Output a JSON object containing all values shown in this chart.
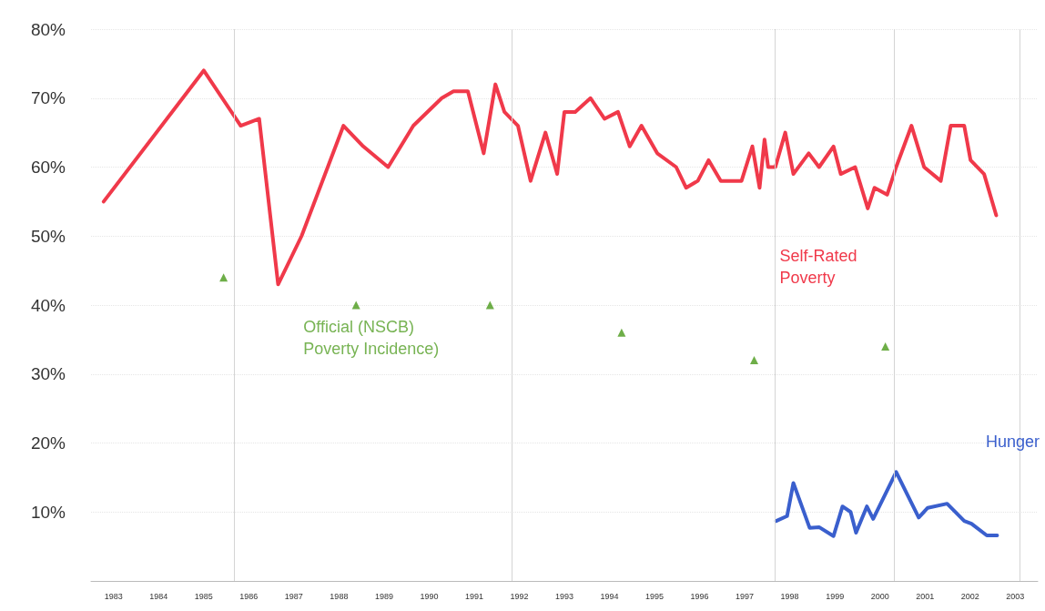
{
  "chart_data": {
    "type": "line",
    "series": [
      {
        "name": "Self-Rated Poverty",
        "color": "#f0394a",
        "x": [
          1982.78,
          1985.0,
          1985.82,
          1986.23,
          1986.65,
          1987.17,
          1988.1,
          1988.54,
          1989.09,
          1989.65,
          1990.28,
          1990.54,
          1990.86,
          1991.21,
          1991.47,
          1991.67,
          1991.97,
          1992.25,
          1992.58,
          1992.84,
          1993.0,
          1993.24,
          1993.58,
          1993.89,
          1994.19,
          1994.45,
          1994.71,
          1995.06,
          1995.48,
          1995.7,
          1995.96,
          1996.2,
          1996.47,
          1996.93,
          1997.17,
          1997.33,
          1997.44,
          1997.52,
          1997.68,
          1997.9,
          1998.08,
          1998.42,
          1998.65,
          1998.97,
          1999.13,
          1999.45,
          1999.73,
          1999.88,
          2000.16,
          2000.36,
          2000.7,
          2000.98,
          2001.35,
          2001.57,
          2001.87,
          2002.01,
          2002.31,
          2002.58
        ],
        "values": [
          55,
          74,
          66,
          67,
          43,
          50,
          66,
          63,
          60,
          66,
          70,
          71,
          71,
          62,
          72,
          68,
          66,
          58,
          65,
          59,
          68,
          68,
          70,
          67,
          68,
          63,
          66,
          62,
          60,
          57,
          58,
          61,
          58,
          58,
          63,
          57,
          64,
          60,
          60,
          65,
          59,
          62,
          60,
          63,
          59,
          60,
          54,
          57,
          56,
          60,
          66,
          60,
          58,
          66,
          66,
          61,
          59,
          53
        ]
      },
      {
        "name": "Hunger",
        "color": "#3a5fcd",
        "x": [
          1997.7,
          1997.94,
          1998.08,
          1998.44,
          1998.65,
          1998.97,
          1999.17,
          1999.35,
          1999.47,
          1999.71,
          1999.85,
          2000.36,
          2000.86,
          2001.06,
          2001.49,
          2001.87,
          2002.03,
          2002.37,
          2002.6
        ],
        "values": [
          8.7,
          9.4,
          14.2,
          7.7,
          7.8,
          6.5,
          10.8,
          10.0,
          7.0,
          10.8,
          9.0,
          15.8,
          9.2,
          10.6,
          11.2,
          8.7,
          8.3,
          6.6,
          6.6
        ]
      },
      {
        "name": "Official (NSCB)\nPoverty Incidence)",
        "color": "#4a9a1a",
        "type": "scatter",
        "marker": "triangle",
        "x": [
          1985.44,
          1988.38,
          1991.35,
          1994.27,
          1997.21,
          2000.12
        ],
        "values": [
          44,
          40,
          40,
          36,
          32,
          34
        ]
      }
    ],
    "xlim": [
      1982.5,
      2003.5
    ],
    "xticks": [
      1983,
      1984,
      1985,
      1986,
      1987,
      1988,
      1989,
      1990,
      1991,
      1992,
      1993,
      1994,
      1995,
      1996,
      1997,
      1998,
      1999,
      2000,
      2001,
      2002,
      2003
    ],
    "ylim": [
      0,
      80
    ],
    "yticks": [
      {
        "value": 10,
        "label": "10%"
      },
      {
        "value": 20,
        "label": "20%"
      },
      {
        "value": 30,
        "label": "30%"
      },
      {
        "value": 40,
        "label": "40%"
      },
      {
        "value": 50,
        "label": "50%"
      },
      {
        "value": 60,
        "label": "60%"
      },
      {
        "value": 70,
        "label": "70%"
      },
      {
        "value": 80,
        "label": "80%"
      }
    ],
    "ref_lines": [
      {
        "axis": "x",
        "value": 1985.68,
        "color": "#d4d4d4"
      },
      {
        "axis": "x",
        "value": 1991.83,
        "color": "#d4d4d4"
      },
      {
        "axis": "x",
        "value": 1997.66,
        "color": "#d4d4d4"
      },
      {
        "axis": "x",
        "value": 2000.32,
        "color": "#d4d4d4"
      },
      {
        "axis": "x",
        "value": 2003.1,
        "color": "#d4d4d4"
      }
    ],
    "grid": "y",
    "legend": false,
    "marker": "none",
    "line_style": "solid"
  }
}
